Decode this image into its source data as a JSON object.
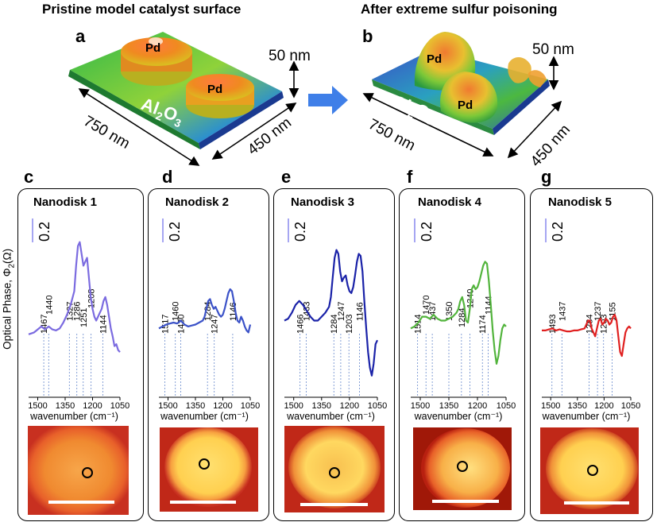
{
  "header": {
    "left_title": "Pristine model catalyst surface",
    "right_title": "After extreme sulfur poisoning",
    "panel_a": "a",
    "panel_b": "b"
  },
  "schematic": {
    "pd_label": "Pd",
    "support_base": "Al",
    "support_sub2": "2",
    "support_o": "O",
    "support_sub3": "3",
    "width_label": "750 nm",
    "depth_label": "450 nm",
    "height_label": "50 nm"
  },
  "y_axis_label": "Optical Phase, Φ",
  "y_axis_label_sub": "2",
  "y_axis_label_tail": "(Ω)",
  "scale_bar_value": "0.2",
  "x_axis_label": "wavenumber (cm⁻¹)",
  "x_ticks": [
    "1500",
    "1350",
    "1200",
    "1050"
  ],
  "colors": {
    "nanodisk1": "#7b6be0",
    "nanodisk2": "#3b52c8",
    "nanodisk3": "#1a22a8",
    "nanodisk4": "#52b43c",
    "nanodisk5": "#e02020"
  },
  "chart_data": [
    {
      "type": "line",
      "panel": "c",
      "title": "Nanodisk 1",
      "xlabel": "wavenumber (cm⁻¹)",
      "ylabel": "Optical Phase, Φ2(Ω)",
      "xlim": [
        1550,
        1050
      ],
      "x": [
        1550,
        1520,
        1500,
        1480,
        1460,
        1440,
        1420,
        1400,
        1380,
        1360,
        1340,
        1320,
        1300,
        1290,
        1280,
        1270,
        1260,
        1250,
        1240,
        1230,
        1220,
        1210,
        1200,
        1190,
        1180,
        1170,
        1160,
        1150,
        1140,
        1130,
        1120,
        1110,
        1100,
        1090,
        1080,
        1070,
        1060,
        1050
      ],
      "y": [
        0.03,
        0.04,
        0.055,
        0.07,
        0.055,
        0.07,
        0.055,
        0.05,
        0.06,
        0.09,
        0.13,
        0.18,
        0.25,
        0.38,
        0.48,
        0.5,
        0.44,
        0.38,
        0.4,
        0.42,
        0.32,
        0.22,
        0.16,
        0.12,
        0.1,
        0.12,
        0.14,
        0.16,
        0.2,
        0.22,
        0.18,
        0.12,
        0.06,
        0.02,
        -0.03,
        -0.02,
        -0.05,
        -0.06
      ],
      "peaks": [
        "1467",
        "1440",
        "1327",
        "1286",
        "1251",
        "1208",
        "1144"
      ]
    },
    {
      "type": "line",
      "panel": "d",
      "title": "Nanodisk 2",
      "xlabel": "wavenumber (cm⁻¹)",
      "xlim": [
        1550,
        1050
      ],
      "x": [
        1550,
        1530,
        1510,
        1490,
        1470,
        1450,
        1430,
        1410,
        1390,
        1370,
        1350,
        1330,
        1310,
        1300,
        1290,
        1280,
        1270,
        1260,
        1250,
        1240,
        1230,
        1220,
        1210,
        1200,
        1190,
        1180,
        1170,
        1160,
        1150,
        1140,
        1130,
        1120,
        1110,
        1100,
        1090,
        1080,
        1070,
        1060,
        1050
      ],
      "y": [
        0.06,
        0.07,
        0.08,
        0.085,
        0.09,
        0.085,
        0.1,
        0.08,
        0.07,
        0.075,
        0.08,
        0.09,
        0.1,
        0.12,
        0.16,
        0.2,
        0.21,
        0.18,
        0.16,
        0.17,
        0.15,
        0.13,
        0.12,
        0.13,
        0.16,
        0.2,
        0.24,
        0.26,
        0.25,
        0.2,
        0.14,
        0.1,
        0.09,
        0.12,
        0.1,
        0.07,
        0.05,
        0.04,
        0.08
      ],
      "peaks": [
        "1517",
        "1460",
        "1430",
        "1284",
        "1247",
        "1146"
      ]
    },
    {
      "type": "line",
      "panel": "e",
      "title": "Nanodisk 3",
      "xlabel": "wavenumber (cm⁻¹)",
      "xlim": [
        1550,
        1050
      ],
      "x": [
        1550,
        1530,
        1510,
        1490,
        1470,
        1450,
        1430,
        1410,
        1390,
        1370,
        1350,
        1330,
        1310,
        1300,
        1290,
        1280,
        1270,
        1260,
        1250,
        1240,
        1230,
        1220,
        1210,
        1200,
        1190,
        1180,
        1170,
        1160,
        1150,
        1140,
        1130,
        1120,
        1110,
        1100,
        1090,
        1080,
        1070,
        1060,
        1050
      ],
      "y": [
        0.1,
        0.11,
        0.14,
        0.18,
        0.2,
        0.18,
        0.15,
        0.12,
        0.1,
        0.1,
        0.12,
        0.14,
        0.17,
        0.22,
        0.32,
        0.42,
        0.46,
        0.44,
        0.35,
        0.3,
        0.32,
        0.33,
        0.28,
        0.25,
        0.24,
        0.27,
        0.33,
        0.4,
        0.44,
        0.43,
        0.35,
        0.2,
        0.06,
        -0.06,
        -0.14,
        -0.18,
        -0.12,
        -0.02,
        0.0
      ],
      "peaks": [
        "1466",
        "1433",
        "1284",
        "1247",
        "1203",
        "1146"
      ]
    },
    {
      "type": "line",
      "panel": "f",
      "title": "Nanodisk 4",
      "xlabel": "wavenumber (cm⁻¹)",
      "xlim": [
        1550,
        1050
      ],
      "x": [
        1550,
        1530,
        1510,
        1490,
        1470,
        1450,
        1430,
        1410,
        1390,
        1370,
        1350,
        1330,
        1310,
        1300,
        1290,
        1280,
        1270,
        1260,
        1250,
        1240,
        1230,
        1220,
        1210,
        1200,
        1190,
        1180,
        1170,
        1160,
        1150,
        1140,
        1130,
        1120,
        1110,
        1100,
        1090,
        1080,
        1070,
        1060,
        1050
      ],
      "y": [
        0.06,
        0.07,
        0.09,
        0.12,
        0.12,
        0.11,
        0.13,
        0.11,
        0.1,
        0.1,
        0.11,
        0.12,
        0.14,
        0.16,
        0.2,
        0.22,
        0.18,
        0.1,
        0.09,
        0.16,
        0.26,
        0.28,
        0.26,
        0.27,
        0.3,
        0.34,
        0.38,
        0.4,
        0.39,
        0.3,
        0.18,
        0.05,
        -0.05,
        -0.12,
        -0.08,
        0.0,
        0.06,
        0.08,
        0.07
      ],
      "peaks": [
        "1514",
        "1470",
        "1437",
        "1350",
        "1284",
        "1240",
        "1174",
        "1144"
      ]
    },
    {
      "type": "line",
      "panel": "g",
      "title": "Nanodisk 5",
      "xlabel": "wavenumber (cm⁻¹)",
      "xlim": [
        1550,
        1050
      ],
      "x": [
        1550,
        1530,
        1510,
        1490,
        1470,
        1450,
        1430,
        1410,
        1390,
        1370,
        1350,
        1330,
        1310,
        1300,
        1290,
        1280,
        1270,
        1260,
        1250,
        1240,
        1230,
        1220,
        1210,
        1200,
        1190,
        1180,
        1170,
        1160,
        1150,
        1140,
        1130,
        1120,
        1110,
        1100,
        1090,
        1080,
        1070,
        1060,
        1050
      ],
      "y": [
        0.05,
        0.05,
        0.055,
        0.06,
        0.05,
        0.055,
        0.05,
        0.045,
        0.045,
        0.05,
        0.05,
        0.055,
        0.06,
        0.08,
        0.1,
        0.1,
        0.06,
        0.04,
        0.02,
        0.06,
        0.1,
        0.11,
        0.08,
        0.09,
        0.11,
        0.1,
        0.08,
        0.09,
        0.12,
        0.13,
        0.1,
        0.02,
        -0.06,
        -0.08,
        -0.02,
        0.04,
        0.06,
        0.07,
        0.06
      ],
      "peaks": [
        "1493",
        "1437",
        "1284",
        "1237",
        "1203",
        "1155"
      ]
    }
  ]
}
